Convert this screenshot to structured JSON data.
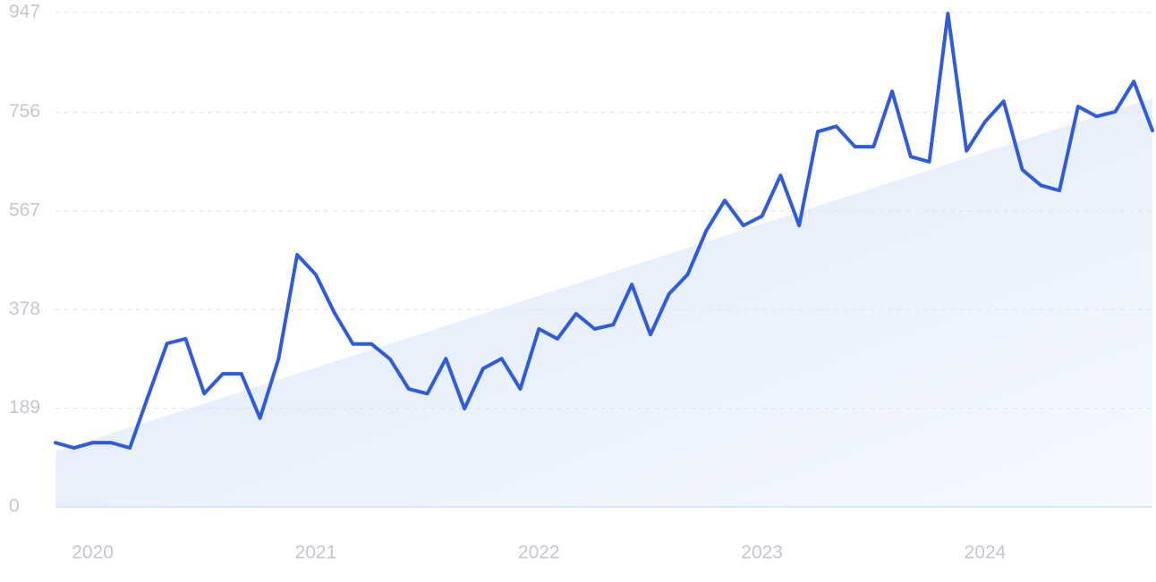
{
  "chart_data": {
    "type": "line",
    "categories": [
      null,
      null,
      "2020",
      null,
      null,
      null,
      null,
      null,
      null,
      null,
      null,
      null,
      null,
      null,
      "2021",
      null,
      null,
      null,
      null,
      null,
      null,
      null,
      null,
      null,
      null,
      null,
      "2022",
      null,
      null,
      null,
      null,
      null,
      null,
      null,
      null,
      null,
      null,
      null,
      "2023",
      null,
      null,
      null,
      null,
      null,
      null,
      null,
      null,
      null,
      null,
      null,
      "2024",
      null,
      null,
      null,
      null,
      null,
      null,
      null,
      null,
      null
    ],
    "series": [
      {
        "color": "#2f5be0",
        "values": [
          123,
          113,
          123,
          123,
          113,
          214,
          313,
          322,
          217,
          255,
          255,
          170,
          284,
          483,
          445,
          372,
          312,
          312,
          283,
          226,
          217,
          284,
          188,
          265,
          284,
          226,
          341,
          322,
          370,
          341,
          349,
          426,
          330,
          408,
          445,
          529,
          587,
          539,
          557,
          635,
          539,
          719,
          729,
          690,
          690,
          796,
          671,
          661,
          945,
          682,
          738,
          777,
          646,
          616,
          606,
          767,
          748,
          757,
          815,
          721
        ]
      }
    ],
    "trend": {
      "values": [
        106,
        783
      ]
    },
    "ylim": [
      0,
      947
    ],
    "yticks": [
      0,
      189,
      378,
      567,
      756,
      947
    ],
    "grid": true
  }
}
